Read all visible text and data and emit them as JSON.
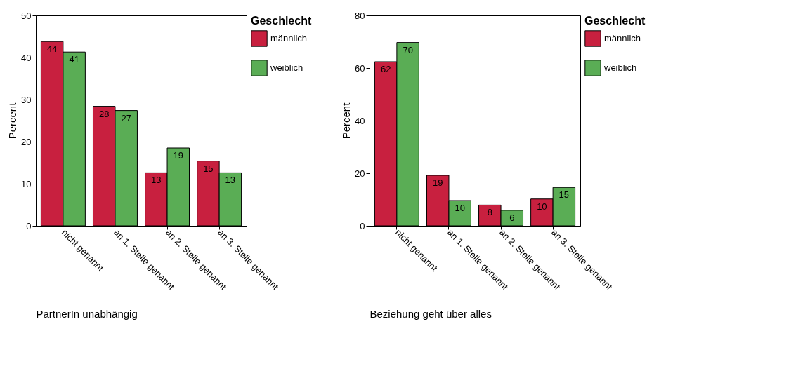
{
  "chart_data": [
    {
      "type": "bar",
      "xlabel": "PartnerIn unabhängig",
      "ylabel": "Percent",
      "legend_title": "Geschlecht",
      "categories": [
        "nicht genannt",
        "an 1. Stelle genannt",
        "an 2. Stelle genannt",
        "an 3. Stelle genannt"
      ],
      "series": [
        {
          "name": "männlich",
          "color": "#c8203f",
          "values": [
            43.8,
            28.4,
            12.6,
            15.4
          ],
          "value_labels": [
            "44",
            "28",
            "13",
            "15"
          ]
        },
        {
          "name": "weiblich",
          "color": "#5aad55",
          "values": [
            41.3,
            27.4,
            18.5,
            12.6
          ],
          "value_labels": [
            "41",
            "27",
            "19",
            "13"
          ]
        }
      ],
      "ylim": [
        0,
        50
      ],
      "yticks": [
        0,
        10,
        20,
        30,
        40,
        50
      ],
      "grid": false,
      "legend": "right"
    },
    {
      "type": "bar",
      "xlabel": "Beziehung geht über alles",
      "ylabel": "Percent",
      "legend_title": "Geschlecht",
      "categories": [
        "nicht genannt",
        "an 1. Stelle genannt",
        "an 2. Stelle genannt",
        "an 3. Stelle genannt"
      ],
      "series": [
        {
          "name": "männlich",
          "color": "#c8203f",
          "values": [
            62.4,
            19.2,
            7.9,
            10.2
          ],
          "value_labels": [
            "62",
            "19",
            "8",
            "10"
          ]
        },
        {
          "name": "weiblich",
          "color": "#5aad55",
          "values": [
            69.7,
            9.6,
            5.9,
            14.6
          ],
          "value_labels": [
            "70",
            "10",
            "6",
            "15"
          ]
        }
      ],
      "ylim": [
        0,
        80
      ],
      "yticks": [
        0,
        20,
        40,
        60,
        80
      ],
      "grid": false,
      "legend": "right"
    }
  ]
}
